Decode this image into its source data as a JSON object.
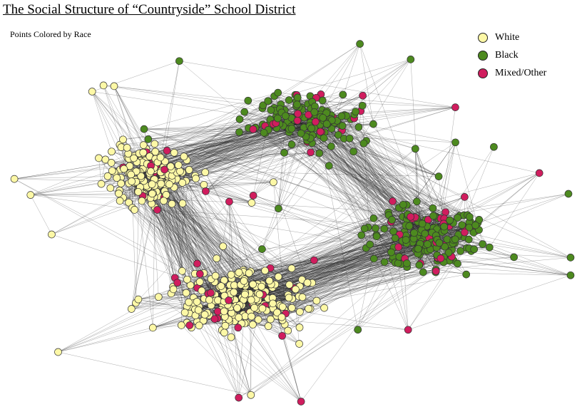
{
  "title": "The Social Structure of “Countryside” School District",
  "subtitle": "Points Colored by Race",
  "legend": [
    {
      "label": "White",
      "color": "#fdf8a6"
    },
    {
      "label": "Black",
      "color": "#4d8a1f"
    },
    {
      "label": "Mixed/Other",
      "color": "#d01d5e"
    }
  ],
  "colors": {
    "white": "#fdf8a6",
    "black": "#4d8a1f",
    "mixed": "#d01d5e",
    "node_stroke": "#333333",
    "edge": "#222222"
  }
}
